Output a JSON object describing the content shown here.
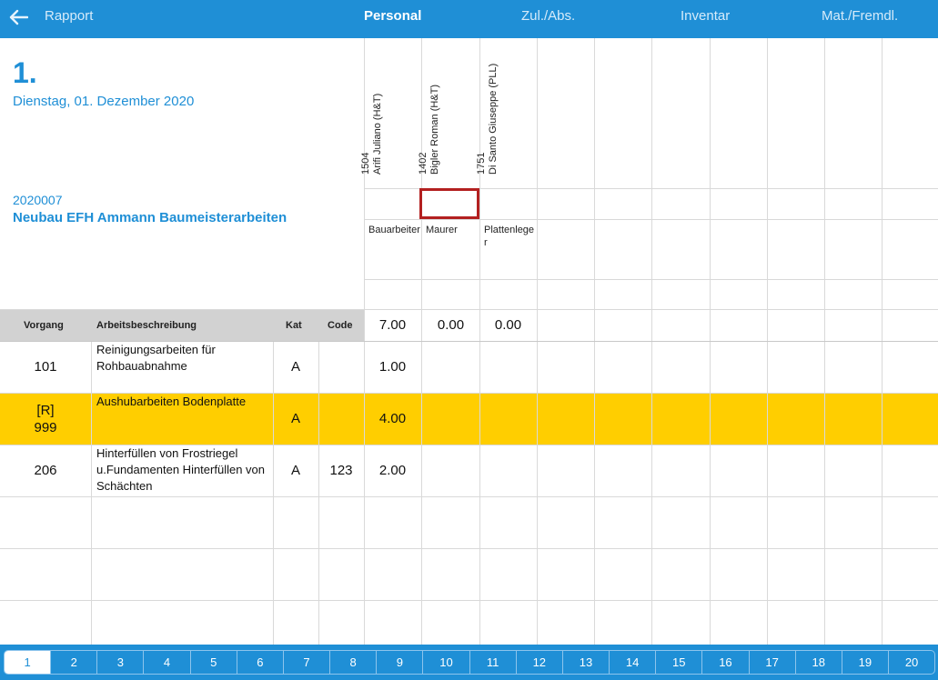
{
  "nav": {
    "back_label": "Rapport",
    "tabs": [
      "Personal",
      "Zul./Abs.",
      "Inventar",
      "Mat./Fremdl."
    ],
    "active_tab": "Personal"
  },
  "header": {
    "day_number": "1.",
    "date": "Dienstag, 01. Dezember 2020",
    "project_number": "2020007",
    "project_name": "Neubau EFH Ammann Baumeisterarbeiten"
  },
  "employees": [
    {
      "id": "1504",
      "name": "Arifi Juliano (H&T)",
      "role": "Bauarbeiter",
      "total": "7.00"
    },
    {
      "id": "1402",
      "name": "Bigler Roman (H&T)",
      "role": "Maurer",
      "total": "0.00"
    },
    {
      "id": "1751",
      "name": "Di Santo Giuseppe (PLL)",
      "role": "Plattenleger",
      "total": "0.00"
    }
  ],
  "table": {
    "headers": {
      "vorgang": "Vorgang",
      "beschreibung": "Arbeitsbeschreibung",
      "kat": "Kat",
      "code": "Code"
    },
    "rows": [
      {
        "vorgang_top": "",
        "vorgang": "101",
        "desc": "Reinigungsarbeiten für Rohbauabnahme",
        "kat": "A",
        "code": "",
        "hours": "1.00",
        "highlighted": false
      },
      {
        "vorgang_top": "[R]",
        "vorgang": "999",
        "desc": "Aushubarbeiten Bodenplatte",
        "kat": "A",
        "code": "",
        "hours": "4.00",
        "highlighted": true
      },
      {
        "vorgang_top": "",
        "vorgang": "206",
        "desc": "Hinterfüllen von Frostriegel u.Fundamenten Hinterfüllen von Schächten",
        "kat": "A",
        "code": "123",
        "hours": "2.00",
        "highlighted": false
      }
    ]
  },
  "pager": {
    "pages": [
      "1",
      "2",
      "3",
      "4",
      "5",
      "6",
      "7",
      "8",
      "9",
      "10",
      "11",
      "12",
      "13",
      "14",
      "15",
      "16",
      "17",
      "18",
      "19",
      "20"
    ],
    "active": "1"
  },
  "colors": {
    "accent": "#1f8fd6",
    "highlight": "#ffce00",
    "selection": "#b32020",
    "header_grey": "#d2d2d2"
  }
}
